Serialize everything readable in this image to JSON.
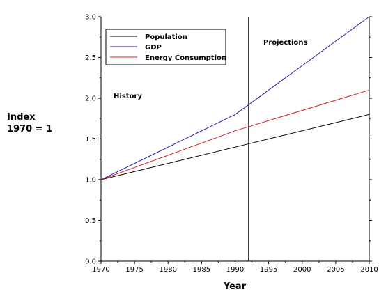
{
  "chart_data": {
    "type": "line",
    "title": "",
    "xlabel": "Year",
    "ylabel": [
      "Index",
      "1970 = 1"
    ],
    "xlim": [
      1970,
      2010
    ],
    "ylim": [
      0.0,
      3.0
    ],
    "x_ticks": [
      1970,
      1975,
      1980,
      1985,
      1990,
      1995,
      2000,
      2005,
      2010
    ],
    "y_ticks": [
      "0.0",
      "0.5",
      "1.0",
      "1.5",
      "2.0",
      "2.5",
      "3.0"
    ],
    "y_tick_values": [
      0.0,
      0.5,
      1.0,
      1.5,
      2.0,
      2.5,
      3.0
    ],
    "grid": false,
    "legend_position": "top-left",
    "series": [
      {
        "name": "Population",
        "color": "#000000",
        "points": [
          [
            1970,
            1.0
          ],
          [
            1990,
            1.4
          ],
          [
            2010,
            1.8
          ]
        ]
      },
      {
        "name": "GDP",
        "color": "#1a1ab0",
        "points": [
          [
            1970,
            1.0
          ],
          [
            1990,
            1.8
          ],
          [
            2010,
            3.0
          ]
        ]
      },
      {
        "name": "Energy Consumption",
        "color": "#d02020",
        "points": [
          [
            1970,
            1.0
          ],
          [
            1990,
            1.6
          ],
          [
            2010,
            2.1
          ]
        ]
      }
    ],
    "divider_year": 1992,
    "annotations": [
      {
        "text": "History",
        "region": "history"
      },
      {
        "text": "Projections",
        "region": "projections"
      }
    ]
  }
}
